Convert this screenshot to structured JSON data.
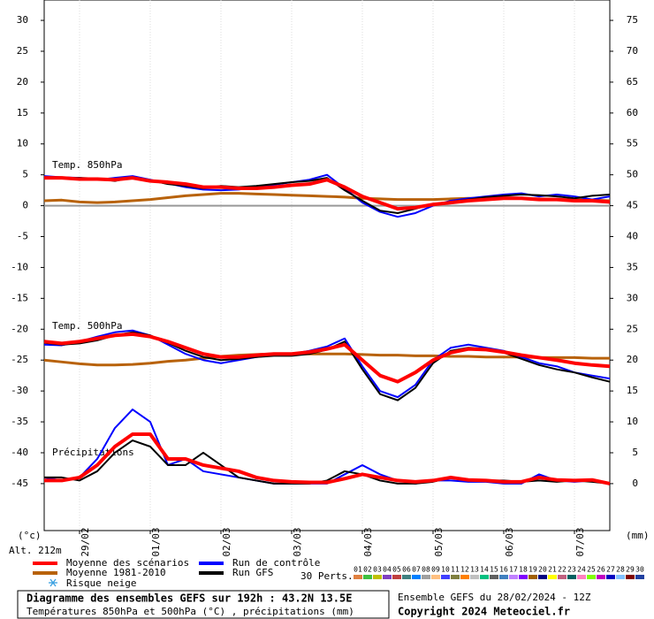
{
  "chart_data": {
    "type": "line",
    "ylim": [
      -52.6,
      33.3
    ],
    "yticks": [
      30,
      25,
      20,
      15,
      10,
      5,
      0,
      -5,
      -10,
      -15,
      -20,
      -25,
      -30,
      -35,
      -40,
      -45
    ],
    "y2lim": [
      -7.6,
      78.3
    ],
    "y2ticks": [
      75,
      70,
      65,
      60,
      55,
      50,
      45,
      40,
      35,
      30,
      25,
      20,
      15,
      10,
      5,
      0
    ],
    "ylabel": "(°c)",
    "y2label": "(mm)",
    "altitude": "Alt. 212m",
    "xlim": [
      0,
      192
    ],
    "xticks": [
      {
        "value": 12,
        "label": "29/02"
      },
      {
        "value": 36,
        "label": "01/03"
      },
      {
        "value": 60,
        "label": "02/03"
      },
      {
        "value": 84,
        "label": "03/03"
      },
      {
        "value": 108,
        "label": "04/03"
      },
      {
        "value": 132,
        "label": "05/03"
      },
      {
        "value": 156,
        "label": "06/03"
      },
      {
        "value": 180,
        "label": "07/03"
      }
    ],
    "x": [
      0,
      6,
      12,
      18,
      24,
      30,
      36,
      42,
      48,
      54,
      60,
      66,
      72,
      78,
      84,
      90,
      96,
      102,
      108,
      114,
      120,
      126,
      132,
      138,
      144,
      150,
      156,
      162,
      168,
      174,
      180,
      186,
      192
    ],
    "zero_line": 0,
    "legend": [
      {
        "name": "Moyenne des scénarios",
        "color": "#ff0000"
      },
      {
        "name": "Moyenne 1981-2010",
        "color": "#b8620a"
      },
      {
        "name": "Run de contrôle",
        "color": "#0000ff"
      },
      {
        "name": "Run GFS",
        "color": "#000000"
      }
    ],
    "snow": "Risque neige",
    "groups": [
      {
        "label": "Temp. 850hPa",
        "axis": "y",
        "climatology": [
          0.8,
          0.9,
          0.6,
          0.5,
          0.6,
          0.8,
          1.0,
          1.3,
          1.6,
          1.8,
          2.0,
          2.0,
          1.9,
          1.8,
          1.7,
          1.6,
          1.5,
          1.4,
          1.2,
          1.1,
          1.0,
          1.0,
          1.0,
          1.1,
          1.2,
          1.2,
          1.3,
          1.2,
          1.1,
          1.0,
          1.0,
          0.9,
          0.8
        ],
        "control": [
          4.8,
          4.6,
          4.5,
          4.2,
          4.5,
          4.8,
          4.2,
          3.6,
          3.0,
          2.6,
          2.5,
          2.6,
          3.0,
          3.4,
          3.8,
          4.2,
          5.0,
          2.8,
          0.5,
          -1.0,
          -1.8,
          -1.2,
          0.0,
          0.8,
          1.2,
          1.5,
          1.8,
          2.0,
          1.5,
          1.8,
          1.5,
          1.0,
          1.5
        ],
        "gfs": [
          4.6,
          4.4,
          4.5,
          4.4,
          4.0,
          4.6,
          4.1,
          3.5,
          3.2,
          2.8,
          3.2,
          3.0,
          3.2,
          3.5,
          3.8,
          4.0,
          4.5,
          2.5,
          0.8,
          -0.8,
          -1.2,
          -0.5,
          0.3,
          0.6,
          1.0,
          1.4,
          1.6,
          1.8,
          1.7,
          1.5,
          1.2,
          1.6,
          1.8
        ],
        "mean": [
          4.5,
          4.5,
          4.3,
          4.3,
          4.2,
          4.5,
          4.0,
          3.8,
          3.5,
          3.0,
          3.0,
          2.8,
          2.8,
          3.0,
          3.3,
          3.5,
          4.2,
          3.0,
          1.5,
          0.5,
          -0.5,
          -0.3,
          0.2,
          0.5,
          0.8,
          1.0,
          1.2,
          1.2,
          1.0,
          1.0,
          0.8,
          0.8,
          0.6
        ]
      },
      {
        "label": "Temp. 500hPa",
        "axis": "y",
        "climatology": [
          -25,
          -25.3,
          -25.6,
          -25.8,
          -25.8,
          -25.7,
          -25.5,
          -25.2,
          -25,
          -24.7,
          -24.4,
          -24.2,
          -24.1,
          -24,
          -24,
          -24,
          -24,
          -24,
          -24.1,
          -24.2,
          -24.2,
          -24.3,
          -24.3,
          -24.4,
          -24.4,
          -24.5,
          -24.5,
          -24.5,
          -24.6,
          -24.6,
          -24.6,
          -24.7,
          -24.7
        ],
        "control": [
          -22.5,
          -22.6,
          -22,
          -21.2,
          -20.5,
          -20.2,
          -21,
          -22.5,
          -24,
          -25,
          -25.5,
          -25,
          -24.5,
          -24.2,
          -24,
          -23.5,
          -22.8,
          -21.5,
          -26,
          -30,
          -31,
          -29,
          -25,
          -23,
          -22.5,
          -23,
          -23.5,
          -24.5,
          -25.5,
          -26,
          -27,
          -27.5,
          -28
        ],
        "gfs": [
          -22.2,
          -22.5,
          -22.3,
          -21.8,
          -21,
          -20.5,
          -21,
          -22.2,
          -23.5,
          -24.5,
          -25,
          -24.8,
          -24.5,
          -24.3,
          -24.3,
          -24,
          -23.3,
          -22,
          -26.5,
          -30.5,
          -31.5,
          -29.5,
          -25.5,
          -23.5,
          -23,
          -23.2,
          -23.8,
          -24.8,
          -25.8,
          -26.5,
          -27,
          -27.8,
          -28.5
        ],
        "mean": [
          -22,
          -22.3,
          -22,
          -21.5,
          -21,
          -20.8,
          -21.2,
          -22,
          -23,
          -24,
          -24.5,
          -24.5,
          -24.2,
          -24,
          -24,
          -23.7,
          -23.2,
          -22.5,
          -25,
          -27.5,
          -28.5,
          -27,
          -25,
          -23.8,
          -23.2,
          -23.3,
          -23.7,
          -24.2,
          -24.6,
          -25,
          -25.5,
          -25.8,
          -26
        ]
      },
      {
        "label": "Précipitations",
        "axis": "y2",
        "control": [
          1,
          0.5,
          1,
          4,
          9,
          12,
          10,
          3,
          4,
          2,
          1.5,
          1,
          0.5,
          0,
          0,
          0,
          0,
          1.5,
          3,
          1.5,
          0.5,
          0,
          0.5,
          0.5,
          0.3,
          0.3,
          0,
          0,
          1.5,
          0.5,
          0.3,
          0.5,
          0
        ],
        "gfs": [
          1,
          1,
          0.5,
          2,
          5,
          7,
          6,
          3,
          3,
          5,
          3,
          1,
          0.5,
          0,
          0,
          0,
          0.5,
          2,
          1.5,
          0.5,
          0,
          0,
          0.3,
          1,
          0.5,
          0.5,
          0.5,
          0.3,
          0.5,
          0.3,
          0.5,
          0.3,
          0
        ],
        "mean": [
          0.5,
          0.5,
          1,
          3,
          6,
          8,
          8,
          4,
          4,
          3,
          2.5,
          2,
          1,
          0.5,
          0.3,
          0.2,
          0.2,
          0.8,
          1.5,
          1,
          0.5,
          0.3,
          0.5,
          1,
          0.6,
          0.5,
          0.3,
          0.3,
          1,
          0.6,
          0.5,
          0.6,
          0
        ]
      }
    ],
    "perts_label": "30 Perts.",
    "perts": [
      {
        "label": "01",
        "color": "#e08040"
      },
      {
        "label": "02",
        "color": "#40c040"
      },
      {
        "label": "03",
        "color": "#c0c000"
      },
      {
        "label": "04",
        "color": "#8040c0"
      },
      {
        "label": "05",
        "color": "#c04040"
      },
      {
        "label": "06",
        "color": "#408080"
      },
      {
        "label": "07",
        "color": "#0080ff"
      },
      {
        "label": "08",
        "color": "#a0a0a0"
      },
      {
        "label": "09",
        "color": "#ffc080"
      },
      {
        "label": "10",
        "color": "#4040ff"
      },
      {
        "label": "11",
        "color": "#808040"
      },
      {
        "label": "12",
        "color": "#ff8000"
      },
      {
        "label": "13",
        "color": "#c0c0c0"
      },
      {
        "label": "14",
        "color": "#00c080"
      },
      {
        "label": "15",
        "color": "#606060"
      },
      {
        "label": "16",
        "color": "#4080c0"
      },
      {
        "label": "17",
        "color": "#c080ff"
      },
      {
        "label": "18",
        "color": "#8000ff"
      },
      {
        "label": "19",
        "color": "#a06000"
      },
      {
        "label": "20",
        "color": "#000080"
      },
      {
        "label": "21",
        "color": "#ffff00"
      },
      {
        "label": "22",
        "color": "#c06080"
      },
      {
        "label": "23",
        "color": "#006060"
      },
      {
        "label": "24",
        "color": "#ff80c0"
      },
      {
        "label": "25",
        "color": "#80ff00"
      },
      {
        "label": "26",
        "color": "#c000c0"
      },
      {
        "label": "27",
        "color": "#0000c0"
      },
      {
        "label": "28",
        "color": "#80c0ff"
      },
      {
        "label": "29",
        "color": "#800000"
      },
      {
        "label": "30",
        "color": "#2040a0"
      }
    ],
    "footer": {
      "title": "Diagramme des ensembles GEFS sur 192h : 43.2N 13.5E",
      "subtitle": "Températures 850hPa et 500hPa (°C) , précipitations (mm)",
      "run": "Ensemble GEFS du 28/02/2024 - 12Z",
      "copyright": "Copyright 2024 Meteociel.fr"
    }
  }
}
